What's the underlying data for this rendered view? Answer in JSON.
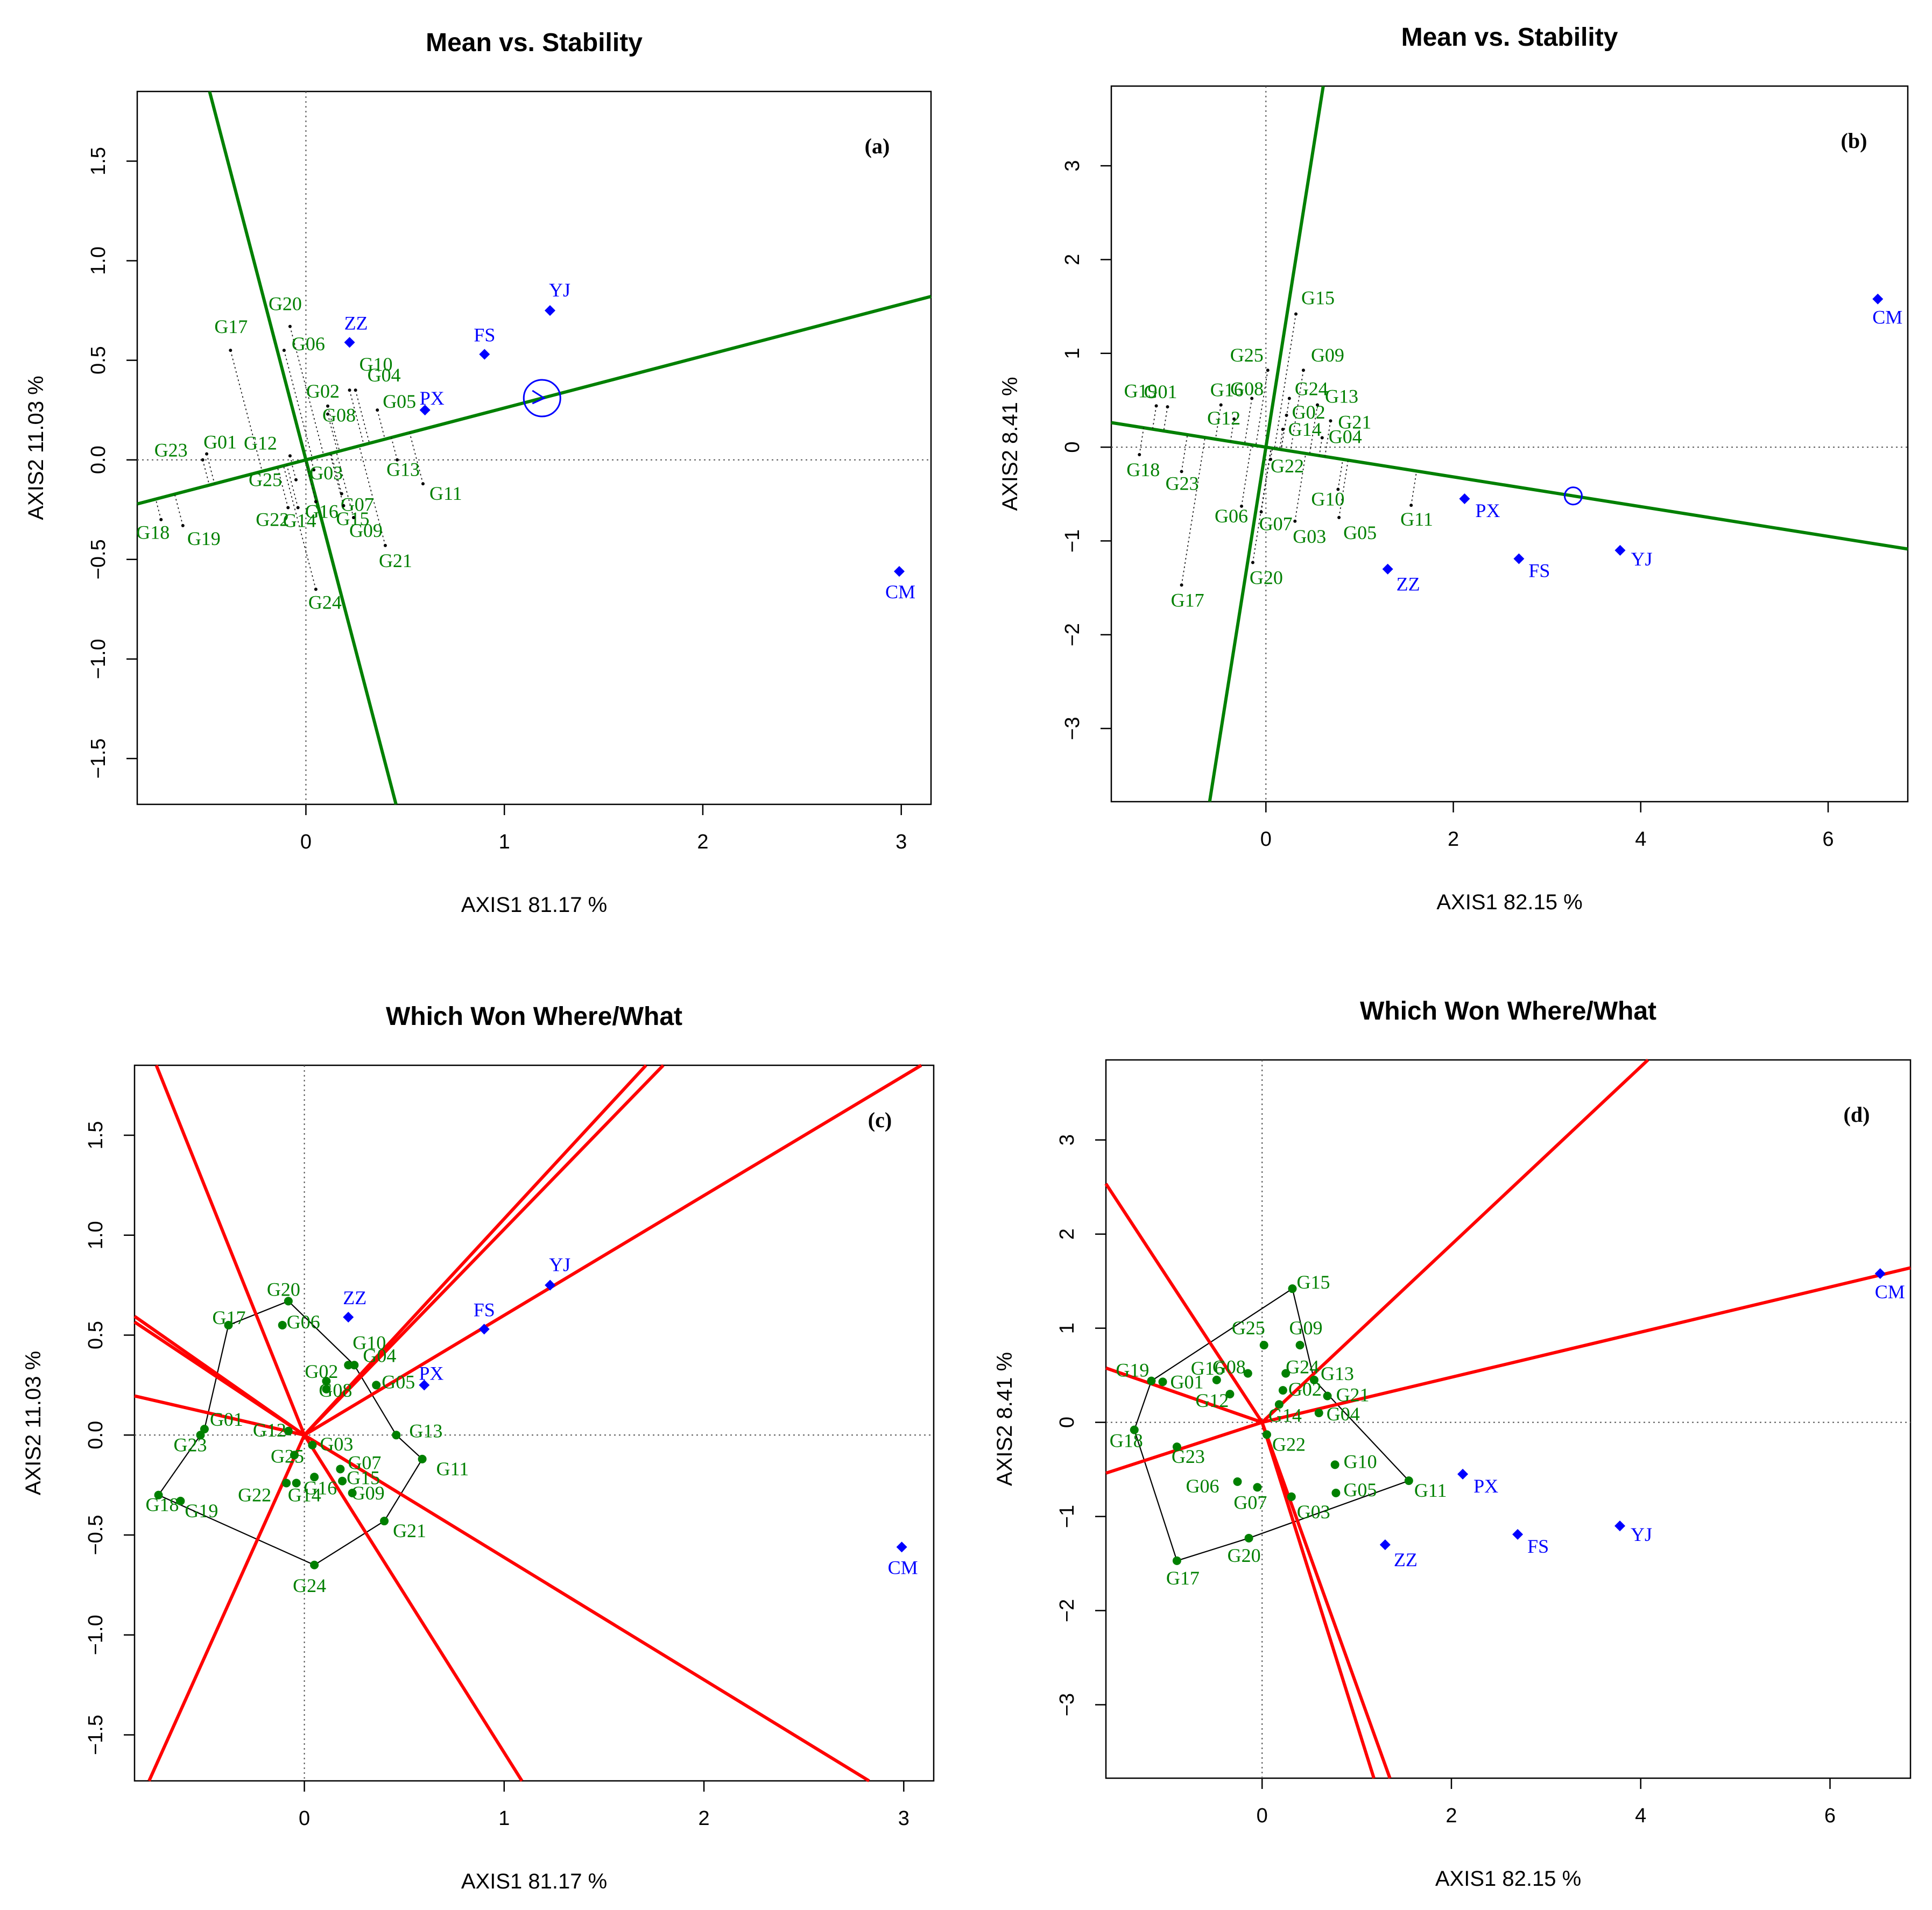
{
  "chart_data": [
    {
      "type": "scatter",
      "panel": "(a)",
      "title": "Mean vs. Stability",
      "xlabel": "AXIS1 81.17 %",
      "ylabel": "AXIS2 11.03 %",
      "xlim": [
        -0.85,
        3.15
      ],
      "ylim": [
        -1.73,
        1.85
      ],
      "xticks": [
        "0",
        "1",
        "2",
        "3"
      ],
      "xtick_values": [
        0,
        1,
        2,
        3
      ],
      "yticks": [
        "−1.5",
        "−1.0",
        "−0.5",
        "0.0",
        "0.5",
        "1.0",
        "1.5"
      ],
      "ytick_values": [
        -1.5,
        -1.0,
        -0.5,
        0.0,
        0.5,
        1.0,
        1.5
      ],
      "genotype_color": "#008000",
      "environment_color": "#0000ff",
      "line_color": "#008000",
      "environments": [
        {
          "name": "YJ",
          "x": 1.23,
          "y": 0.75
        },
        {
          "name": "FS",
          "x": 0.9,
          "y": 0.53
        },
        {
          "name": "ZZ",
          "x": 0.22,
          "y": 0.59
        },
        {
          "name": "PX",
          "x": 0.6,
          "y": 0.25
        },
        {
          "name": "CM",
          "x": 2.99,
          "y": -0.56
        }
      ],
      "genotypes": [
        {
          "name": "G17",
          "x": -0.38,
          "y": 0.55
        },
        {
          "name": "G20",
          "x": -0.08,
          "y": 0.67
        },
        {
          "name": "G06",
          "x": -0.11,
          "y": 0.55
        },
        {
          "name": "G02",
          "x": 0.11,
          "y": 0.27
        },
        {
          "name": "G04",
          "x": 0.25,
          "y": 0.35
        },
        {
          "name": "G10",
          "x": 0.22,
          "y": 0.35
        },
        {
          "name": "G05",
          "x": 0.36,
          "y": 0.25
        },
        {
          "name": "G08",
          "x": 0.11,
          "y": 0.23
        },
        {
          "name": "G01",
          "x": -0.5,
          "y": 0.03
        },
        {
          "name": "G23",
          "x": -0.52,
          "y": 0.0
        },
        {
          "name": "G12",
          "x": -0.08,
          "y": 0.02
        },
        {
          "name": "G03",
          "x": 0.04,
          "y": -0.05
        },
        {
          "name": "G13",
          "x": 0.46,
          "y": 0.0
        },
        {
          "name": "G11",
          "x": 0.59,
          "y": -0.12
        },
        {
          "name": "G07",
          "x": 0.18,
          "y": -0.17
        },
        {
          "name": "G25",
          "x": -0.05,
          "y": -0.1
        },
        {
          "name": "G16",
          "x": 0.05,
          "y": -0.21
        },
        {
          "name": "G15",
          "x": 0.19,
          "y": -0.23
        },
        {
          "name": "G22",
          "x": -0.09,
          "y": -0.24
        },
        {
          "name": "G14",
          "x": -0.04,
          "y": -0.24
        },
        {
          "name": "G09",
          "x": 0.24,
          "y": -0.29
        },
        {
          "name": "G21",
          "x": 0.4,
          "y": -0.43
        },
        {
          "name": "G18",
          "x": -0.73,
          "y": -0.3
        },
        {
          "name": "G19",
          "x": -0.62,
          "y": -0.33
        },
        {
          "name": "G24",
          "x": 0.05,
          "y": -0.65
        }
      ],
      "aec_point": {
        "x": 1.19,
        "y": 0.31
      }
    },
    {
      "type": "scatter",
      "panel": "(b)",
      "title": "Mean vs. Stability",
      "xlabel": "AXIS1 82.15 %",
      "ylabel": "AXIS2 8.41 %",
      "xlim": [
        -1.65,
        6.85
      ],
      "ylim": [
        -3.78,
        3.85
      ],
      "xticks": [
        "0",
        "2",
        "4",
        "6"
      ],
      "xtick_values": [
        0,
        2,
        4,
        6
      ],
      "yticks": [
        "−3",
        "−2",
        "−1",
        "0",
        "1",
        "2",
        "3"
      ],
      "ytick_values": [
        -3,
        -2,
        -1,
        0,
        1,
        2,
        3
      ],
      "genotype_color": "#008000",
      "environment_color": "#0000ff",
      "line_color": "#008000",
      "environments": [
        {
          "name": "CM",
          "x": 6.53,
          "y": 1.58
        },
        {
          "name": "PX",
          "x": 2.12,
          "y": -0.55
        },
        {
          "name": "FS",
          "x": 2.7,
          "y": -1.19
        },
        {
          "name": "YJ",
          "x": 3.78,
          "y": -1.1
        },
        {
          "name": "ZZ",
          "x": 1.3,
          "y": -1.3
        }
      ],
      "genotypes": [
        {
          "name": "G15",
          "x": 0.32,
          "y": 1.42
        },
        {
          "name": "G25",
          "x": 0.02,
          "y": 0.82
        },
        {
          "name": "G09",
          "x": 0.4,
          "y": 0.82
        },
        {
          "name": "G19",
          "x": -1.17,
          "y": 0.44
        },
        {
          "name": "G01",
          "x": -1.05,
          "y": 0.43
        },
        {
          "name": "G16",
          "x": -0.48,
          "y": 0.45
        },
        {
          "name": "G08",
          "x": -0.15,
          "y": 0.52
        },
        {
          "name": "G24",
          "x": 0.25,
          "y": 0.52
        },
        {
          "name": "G13",
          "x": 0.55,
          "y": 0.45
        },
        {
          "name": "G12",
          "x": -0.34,
          "y": 0.3
        },
        {
          "name": "G02",
          "x": 0.22,
          "y": 0.34
        },
        {
          "name": "G21",
          "x": 0.69,
          "y": 0.28
        },
        {
          "name": "G14",
          "x": 0.18,
          "y": 0.19
        },
        {
          "name": "G04",
          "x": 0.6,
          "y": 0.1
        },
        {
          "name": "G18",
          "x": -1.35,
          "y": -0.08
        },
        {
          "name": "G22",
          "x": 0.05,
          "y": -0.13
        },
        {
          "name": "G23",
          "x": -0.9,
          "y": -0.26
        },
        {
          "name": "G10",
          "x": 0.77,
          "y": -0.45
        },
        {
          "name": "G06",
          "x": -0.26,
          "y": -0.63
        },
        {
          "name": "G11",
          "x": 1.55,
          "y": -0.62
        },
        {
          "name": "G07",
          "x": -0.05,
          "y": -0.69
        },
        {
          "name": "G03",
          "x": 0.31,
          "y": -0.79
        },
        {
          "name": "G05",
          "x": 0.78,
          "y": -0.75
        },
        {
          "name": "G20",
          "x": -0.14,
          "y": -1.23
        },
        {
          "name": "G17",
          "x": -0.9,
          "y": -1.47
        }
      ],
      "aec_point": {
        "x": 3.28,
        "y": -0.52
      }
    },
    {
      "type": "scatter",
      "panel": "(c)",
      "title": "Which Won Where/What",
      "xlabel": "AXIS1 81.17 %",
      "ylabel": "AXIS2 11.03 %",
      "xlim": [
        -0.85,
        3.15
      ],
      "ylim": [
        -1.73,
        1.85
      ],
      "xticks": [
        "0",
        "1",
        "2",
        "3"
      ],
      "xtick_values": [
        0,
        1,
        2,
        3
      ],
      "yticks": [
        "−1.5",
        "−1.0",
        "−0.5",
        "0.0",
        "0.5",
        "1.0",
        "1.5"
      ],
      "ytick_values": [
        -1.5,
        -1.0,
        -0.5,
        0.0,
        0.5,
        1.0,
        1.5
      ],
      "genotype_color": "#008000",
      "environment_color": "#0000ff",
      "line_color": "#ff0000",
      "environments": [
        {
          "name": "YJ",
          "x": 1.23,
          "y": 0.75
        },
        {
          "name": "FS",
          "x": 0.9,
          "y": 0.53
        },
        {
          "name": "ZZ",
          "x": 0.22,
          "y": 0.59
        },
        {
          "name": "PX",
          "x": 0.6,
          "y": 0.25
        },
        {
          "name": "CM",
          "x": 2.99,
          "y": -0.56
        }
      ],
      "genotypes": [
        {
          "name": "G17",
          "x": -0.38,
          "y": 0.55
        },
        {
          "name": "G20",
          "x": -0.08,
          "y": 0.67
        },
        {
          "name": "G06",
          "x": -0.11,
          "y": 0.55
        },
        {
          "name": "G02",
          "x": 0.11,
          "y": 0.27
        },
        {
          "name": "G04",
          "x": 0.25,
          "y": 0.35
        },
        {
          "name": "G10",
          "x": 0.22,
          "y": 0.35
        },
        {
          "name": "G05",
          "x": 0.36,
          "y": 0.25
        },
        {
          "name": "G08",
          "x": 0.11,
          "y": 0.23
        },
        {
          "name": "G01",
          "x": -0.5,
          "y": 0.03
        },
        {
          "name": "G23",
          "x": -0.52,
          "y": 0.0
        },
        {
          "name": "G12",
          "x": -0.08,
          "y": 0.02
        },
        {
          "name": "G03",
          "x": 0.04,
          "y": -0.05
        },
        {
          "name": "G13",
          "x": 0.46,
          "y": 0.0
        },
        {
          "name": "G11",
          "x": 0.59,
          "y": -0.12
        },
        {
          "name": "G07",
          "x": 0.18,
          "y": -0.17
        },
        {
          "name": "G25",
          "x": -0.05,
          "y": -0.1
        },
        {
          "name": "G16",
          "x": 0.05,
          "y": -0.21
        },
        {
          "name": "G15",
          "x": 0.19,
          "y": -0.23
        },
        {
          "name": "G22",
          "x": -0.09,
          "y": -0.24
        },
        {
          "name": "G14",
          "x": -0.04,
          "y": -0.24
        },
        {
          "name": "G09",
          "x": 0.24,
          "y": -0.29
        },
        {
          "name": "G21",
          "x": 0.4,
          "y": -0.43
        },
        {
          "name": "G18",
          "x": -0.73,
          "y": -0.3
        },
        {
          "name": "G19",
          "x": -0.62,
          "y": -0.33
        },
        {
          "name": "G24",
          "x": 0.05,
          "y": -0.65
        }
      ],
      "hull": [
        "G20",
        "G04",
        "G13",
        "G11",
        "G21",
        "G24",
        "G18",
        "G23",
        "G01",
        "G17"
      ]
    },
    {
      "type": "scatter",
      "panel": "(d)",
      "title": "Which Won Where/What",
      "xlabel": "AXIS1 82.15 %",
      "ylabel": "AXIS2 8.41 %",
      "xlim": [
        -1.65,
        6.85
      ],
      "ylim": [
        -3.78,
        3.85
      ],
      "xticks": [
        "0",
        "2",
        "4",
        "6"
      ],
      "xtick_values": [
        0,
        2,
        4,
        6
      ],
      "yticks": [
        "−3",
        "−2",
        "−1",
        "0",
        "1",
        "2",
        "3"
      ],
      "ytick_values": [
        -3,
        -2,
        -1,
        0,
        1,
        2,
        3
      ],
      "genotype_color": "#008000",
      "environment_color": "#0000ff",
      "line_color": "#ff0000",
      "environments": [
        {
          "name": "CM",
          "x": 6.53,
          "y": 1.58
        },
        {
          "name": "PX",
          "x": 2.12,
          "y": -0.55
        },
        {
          "name": "FS",
          "x": 2.7,
          "y": -1.19
        },
        {
          "name": "YJ",
          "x": 3.78,
          "y": -1.1
        },
        {
          "name": "ZZ",
          "x": 1.3,
          "y": -1.3
        }
      ],
      "genotypes": [
        {
          "name": "G15",
          "x": 0.32,
          "y": 1.42
        },
        {
          "name": "G25",
          "x": 0.02,
          "y": 0.82
        },
        {
          "name": "G09",
          "x": 0.4,
          "y": 0.82
        },
        {
          "name": "G19",
          "x": -1.17,
          "y": 0.44
        },
        {
          "name": "G01",
          "x": -1.05,
          "y": 0.43
        },
        {
          "name": "G16",
          "x": -0.48,
          "y": 0.45
        },
        {
          "name": "G08",
          "x": -0.15,
          "y": 0.52
        },
        {
          "name": "G24",
          "x": 0.25,
          "y": 0.52
        },
        {
          "name": "G13",
          "x": 0.55,
          "y": 0.45
        },
        {
          "name": "G12",
          "x": -0.34,
          "y": 0.3
        },
        {
          "name": "G02",
          "x": 0.22,
          "y": 0.34
        },
        {
          "name": "G21",
          "x": 0.69,
          "y": 0.28
        },
        {
          "name": "G14",
          "x": 0.18,
          "y": 0.19
        },
        {
          "name": "G04",
          "x": 0.6,
          "y": 0.1
        },
        {
          "name": "G18",
          "x": -1.35,
          "y": -0.08
        },
        {
          "name": "G22",
          "x": 0.05,
          "y": -0.13
        },
        {
          "name": "G23",
          "x": -0.9,
          "y": -0.26
        },
        {
          "name": "G10",
          "x": 0.77,
          "y": -0.45
        },
        {
          "name": "G06",
          "x": -0.26,
          "y": -0.63
        },
        {
          "name": "G11",
          "x": 1.55,
          "y": -0.62
        },
        {
          "name": "G07",
          "x": -0.05,
          "y": -0.69
        },
        {
          "name": "G03",
          "x": 0.31,
          "y": -0.79
        },
        {
          "name": "G05",
          "x": 0.78,
          "y": -0.75
        },
        {
          "name": "G20",
          "x": -0.14,
          "y": -1.23
        },
        {
          "name": "G17",
          "x": -0.9,
          "y": -1.47
        }
      ],
      "hull": [
        "G15",
        "G13",
        "G11",
        "G20",
        "G17",
        "G18",
        "G19"
      ]
    }
  ]
}
